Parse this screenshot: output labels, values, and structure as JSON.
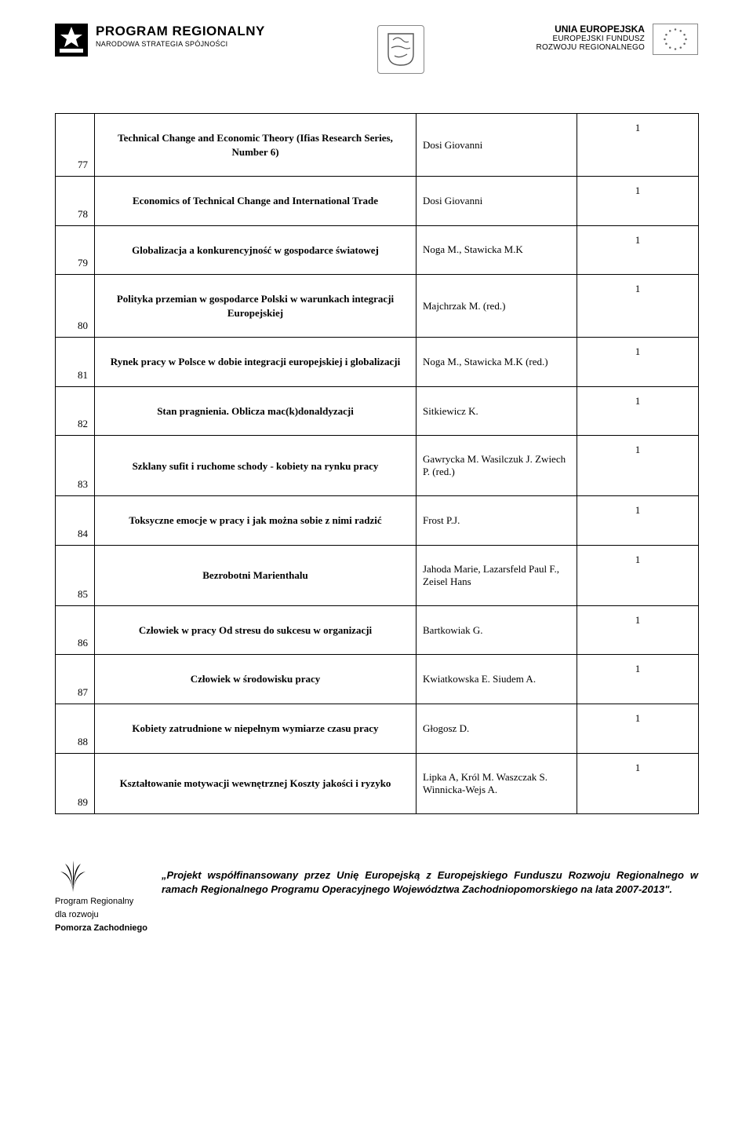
{
  "header": {
    "left": {
      "line1": "PROGRAM REGIONALNY",
      "line2": "NARODOWA STRATEGIA SPÓJNOŚCI"
    },
    "right": {
      "line1": "UNIA EUROPEJSKA",
      "line2": "EUROPEJSKI FUNDUSZ",
      "line3": "ROZWOJU REGIONALNEGO"
    }
  },
  "rows": [
    {
      "n": "77",
      "title": "Technical Change and Economic Theory (Ifias Research Series, Number 6)",
      "author": "Dosi Giovanni",
      "qty": "1"
    },
    {
      "n": "78",
      "title": "Economics of Technical Change and International Trade",
      "author": "Dosi Giovanni",
      "qty": "1"
    },
    {
      "n": "79",
      "title": "Globalizacja a konkurencyjność w gospodarce światowej",
      "author": "Noga M.,   Stawicka M.K",
      "qty": "1"
    },
    {
      "n": "80",
      "title": "Polityka przemian w gospodarce Polski w warunkach integracji Europejskiej",
      "author": "Majchrzak M. (red.)",
      "qty": "1"
    },
    {
      "n": "81",
      "title": "Rynek pracy w Polsce w dobie integracji europejskiej i globalizacji",
      "author": "Noga M.,  Stawicka M.K (red.)",
      "qty": "1"
    },
    {
      "n": "82",
      "title": "Stan pragnienia. Oblicza mac(k)donaldyzacji",
      "author": "Sitkiewicz K.",
      "qty": "1"
    },
    {
      "n": "83",
      "title": "Szklany sufit i ruchome schody - kobiety na rynku pracy",
      "author": "Gawrycka M.   Wasilczuk J.  Zwiech P. (red.)",
      "qty": "1"
    },
    {
      "n": "84",
      "title": "Toksyczne emocje w pracy i jak można sobie z nimi radzić",
      "author": "Frost P.J.",
      "qty": "1"
    },
    {
      "n": "85",
      "title": "Bezrobotni Marienthalu",
      "author": "Jahoda Marie, Lazarsfeld Paul F.,   Zeisel Hans",
      "qty": "1"
    },
    {
      "n": "86",
      "title": "Człowiek w pracy Od stresu do sukcesu w organizacji",
      "author": "Bartkowiak G.",
      "qty": "1"
    },
    {
      "n": "87",
      "title": "Człowiek w środowisku pracy",
      "author": "Kwiatkowska E. Siudem A.",
      "qty": "1"
    },
    {
      "n": "88",
      "title": "Kobiety zatrudnione w niepełnym wymiarze czasu pracy",
      "author": "Głogosz D.",
      "qty": "1"
    },
    {
      "n": "89",
      "title": "Kształtowanie motywacji wewnętrznej Koszty jakości i ryzyko",
      "author": "Lipka A,  Król M. Waszczak S.  Winnicka-Wejs A.",
      "qty": "1"
    }
  ],
  "footer": {
    "logo_line1": "Program Regionalny",
    "logo_line2": "dla rozwoju",
    "logo_line3": "Pomorza Zachodniego",
    "text": "„Projekt współfinansowany przez Unię Europejską z Europejskiego Funduszu Rozwoju Regionalnego w ramach Regionalnego Programu Operacyjnego Województwa Zachodniopomorskiego na lata 2007-2013\"."
  }
}
